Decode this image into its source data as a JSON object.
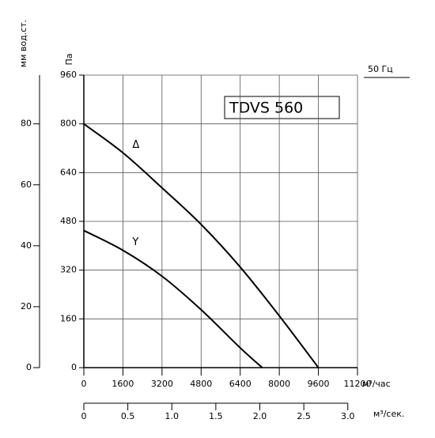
{
  "chart_data": {
    "type": "line",
    "annotation": "TDVS 560",
    "frequency_label": "50 Гц",
    "ylabel": "Па",
    "y2label": "мм вод.ст.",
    "xlabel": "м³/час",
    "x2label": "м³/сек.",
    "xlim": [
      0,
      11200
    ],
    "xticks": [
      0,
      1600,
      3200,
      4800,
      6400,
      8000,
      9600,
      11200
    ],
    "x2lim": [
      0,
      3.11
    ],
    "x2ticks": [
      0,
      {
        "value": 0.5,
        "label": "0.5"
      },
      {
        "value": 1,
        "label": "1.0"
      },
      {
        "value": 1.5,
        "label": "1.5"
      },
      {
        "value": 2,
        "label": "2.0"
      },
      {
        "value": 2.5,
        "label": "2.5"
      },
      {
        "value": 3,
        "label": "3.0"
      }
    ],
    "ylim": [
      0,
      960
    ],
    "yticks": [
      0,
      160,
      320,
      480,
      640,
      800,
      960
    ],
    "y2lim": [
      0,
      96
    ],
    "y2ticks": [
      0,
      20,
      40,
      60,
      80
    ],
    "grid": true,
    "series": [
      {
        "name": "Δ",
        "color": "#000000",
        "x": [
          0,
          1600,
          3200,
          4800,
          6400,
          8000,
          9600
        ],
        "values": [
          800,
          705,
          590,
          470,
          330,
          170,
          0
        ]
      },
      {
        "name": "Y",
        "color": "#000000",
        "x": [
          0,
          1600,
          3200,
          4800,
          6400,
          7300
        ],
        "values": [
          450,
          385,
          300,
          190,
          65,
          0
        ]
      }
    ]
  }
}
